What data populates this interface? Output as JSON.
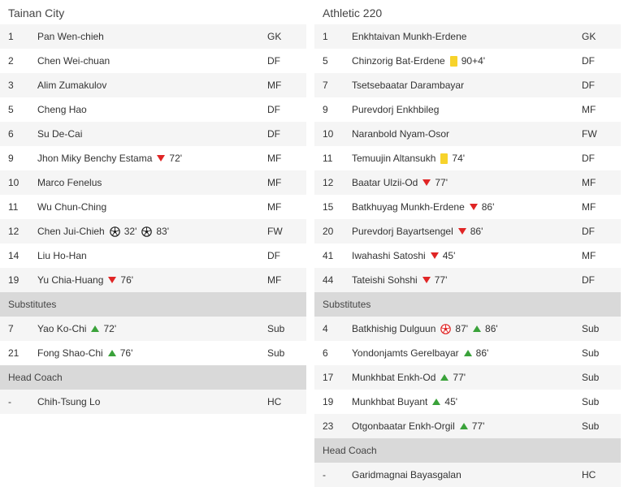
{
  "left": {
    "team": "Tainan City",
    "starters": [
      {
        "num": "1",
        "name": "Pan Wen-chieh",
        "pos": "GK",
        "events": []
      },
      {
        "num": "2",
        "name": "Chen Wei-chuan",
        "pos": "DF",
        "events": []
      },
      {
        "num": "3",
        "name": "Alim Zumakulov",
        "pos": "MF",
        "events": []
      },
      {
        "num": "5",
        "name": "Cheng Hao",
        "pos": "DF",
        "events": []
      },
      {
        "num": "6",
        "name": "Su De-Cai",
        "pos": "DF",
        "events": []
      },
      {
        "num": "9",
        "name": "Jhon Miky Benchy Estama",
        "pos": "MF",
        "events": [
          {
            "type": "sub-off",
            "icon": "sub-off-icon",
            "minute": "72'"
          }
        ]
      },
      {
        "num": "10",
        "name": "Marco Fenelus",
        "pos": "MF",
        "events": []
      },
      {
        "num": "11",
        "name": "Wu Chun-Ching",
        "pos": "MF",
        "events": []
      },
      {
        "num": "12",
        "name": "Chen Jui-Chieh",
        "pos": "FW",
        "events": [
          {
            "type": "goal",
            "icon": "goal-ball-icon",
            "minute": "32'"
          },
          {
            "type": "goal",
            "icon": "goal-ball-icon",
            "minute": "83'"
          }
        ]
      },
      {
        "num": "14",
        "name": "Liu Ho-Han",
        "pos": "DF",
        "events": []
      },
      {
        "num": "19",
        "name": "Yu Chia-Huang",
        "pos": "MF",
        "events": [
          {
            "type": "sub-off",
            "icon": "sub-off-icon",
            "minute": "76'"
          }
        ]
      }
    ],
    "substitutes_label": "Substitutes",
    "substitutes": [
      {
        "num": "7",
        "name": "Yao Ko-Chi",
        "pos": "Sub",
        "events": [
          {
            "type": "sub-on",
            "icon": "sub-on-icon",
            "minute": "72'"
          }
        ]
      },
      {
        "num": "21",
        "name": "Fong Shao-Chi",
        "pos": "Sub",
        "events": [
          {
            "type": "sub-on",
            "icon": "sub-on-icon",
            "minute": "76'"
          }
        ]
      }
    ],
    "coach_label": "Head Coach",
    "coach": [
      {
        "num": "-",
        "name": "Chih-Tsung Lo",
        "pos": "HC",
        "events": []
      }
    ]
  },
  "right": {
    "team": "Athletic 220",
    "starters": [
      {
        "num": "1",
        "name": "Enkhtaivan Munkh-Erdene",
        "pos": "GK",
        "events": []
      },
      {
        "num": "5",
        "name": "Chinzorig Bat-Erdene",
        "pos": "DF",
        "events": [
          {
            "type": "yellow-card",
            "icon": "yellow-card-icon",
            "minute": "90+4'"
          }
        ]
      },
      {
        "num": "7",
        "name": "Tsetsebaatar Darambayar",
        "pos": "DF",
        "events": []
      },
      {
        "num": "9",
        "name": "Purevdorj Enkhbileg",
        "pos": "MF",
        "events": []
      },
      {
        "num": "10",
        "name": "Naranbold Nyam-Osor",
        "pos": "FW",
        "events": []
      },
      {
        "num": "11",
        "name": "Temuujin Altansukh",
        "pos": "DF",
        "events": [
          {
            "type": "yellow-card",
            "icon": "yellow-card-icon",
            "minute": "74'"
          }
        ]
      },
      {
        "num": "12",
        "name": "Baatar Ulzii-Od",
        "pos": "MF",
        "events": [
          {
            "type": "sub-off",
            "icon": "sub-off-icon",
            "minute": "77'"
          }
        ]
      },
      {
        "num": "15",
        "name": "Batkhuyag Munkh-Erdene",
        "pos": "MF",
        "events": [
          {
            "type": "sub-off",
            "icon": "sub-off-icon",
            "minute": "86'"
          }
        ]
      },
      {
        "num": "20",
        "name": "Purevdorj Bayartsengel",
        "pos": "DF",
        "events": [
          {
            "type": "sub-off",
            "icon": "sub-off-icon",
            "minute": "86'"
          }
        ]
      },
      {
        "num": "41",
        "name": "Iwahashi Satoshi",
        "pos": "MF",
        "events": [
          {
            "type": "sub-off",
            "icon": "sub-off-icon",
            "minute": "45'"
          }
        ]
      },
      {
        "num": "44",
        "name": "Tateishi Sohshi",
        "pos": "DF",
        "events": [
          {
            "type": "sub-off",
            "icon": "sub-off-icon",
            "minute": "77'"
          }
        ]
      }
    ],
    "substitutes_label": "Substitutes",
    "substitutes": [
      {
        "num": "4",
        "name": "Batkhishig Dulguun",
        "pos": "Sub",
        "events": [
          {
            "type": "own-goal",
            "icon": "own-goal-ball-icon",
            "minute": "87'"
          },
          {
            "type": "sub-on",
            "icon": "sub-on-icon",
            "minute": "86'"
          }
        ]
      },
      {
        "num": "6",
        "name": "Yondonjamts Gerelbayar",
        "pos": "Sub",
        "events": [
          {
            "type": "sub-on",
            "icon": "sub-on-icon",
            "minute": "86'"
          }
        ]
      },
      {
        "num": "17",
        "name": "Munkhbat Enkh-Od",
        "pos": "Sub",
        "events": [
          {
            "type": "sub-on",
            "icon": "sub-on-icon",
            "minute": "77'"
          }
        ]
      },
      {
        "num": "19",
        "name": "Munkhbat Buyant",
        "pos": "Sub",
        "events": [
          {
            "type": "sub-on",
            "icon": "sub-on-icon",
            "minute": "45'"
          }
        ]
      },
      {
        "num": "23",
        "name": "Otgonbaatar Enkh-Orgil",
        "pos": "Sub",
        "events": [
          {
            "type": "sub-on",
            "icon": "sub-on-icon",
            "minute": "77'"
          }
        ]
      }
    ],
    "coach_label": "Head Coach",
    "coach": [
      {
        "num": "-",
        "name": "Garidmagnai Bayasgalan",
        "pos": "HC",
        "events": []
      }
    ]
  },
  "colors": {
    "sub_off": "#e02525",
    "sub_on": "#3aa23a",
    "yellow_card": "#f7d32b",
    "own_goal": "#e02525",
    "section_bg": "#d9d9d9",
    "row_alt_bg": "#f5f5f5"
  }
}
